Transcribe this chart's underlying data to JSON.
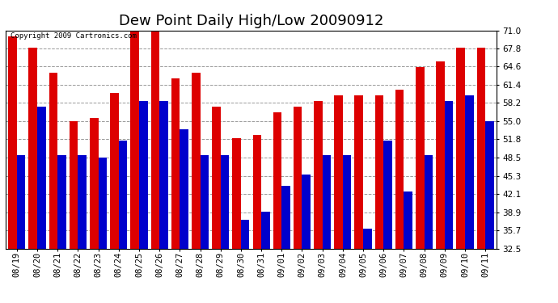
{
  "title": "Dew Point Daily High/Low 20090912",
  "copyright": "Copyright 2009 Cartronics.com",
  "dates": [
    "08/19",
    "08/20",
    "08/21",
    "08/22",
    "08/23",
    "08/24",
    "08/25",
    "08/26",
    "08/27",
    "08/28",
    "08/29",
    "08/30",
    "08/31",
    "09/01",
    "09/02",
    "09/03",
    "09/04",
    "09/05",
    "09/06",
    "09/07",
    "09/08",
    "09/09",
    "09/10",
    "09/11"
  ],
  "highs": [
    70.0,
    68.0,
    63.5,
    55.0,
    55.5,
    60.0,
    71.5,
    72.0,
    62.5,
    63.5,
    57.5,
    52.0,
    52.5,
    56.5,
    57.5,
    58.5,
    59.5,
    59.5,
    59.5,
    60.5,
    64.5,
    65.5,
    68.0,
    68.0
  ],
  "lows": [
    49.0,
    57.5,
    49.0,
    49.0,
    48.5,
    51.5,
    58.5,
    58.5,
    53.5,
    49.0,
    49.0,
    37.5,
    39.0,
    43.5,
    45.5,
    49.0,
    49.0,
    36.0,
    51.5,
    42.5,
    49.0,
    58.5,
    59.5,
    55.0
  ],
  "high_color": "#dd0000",
  "low_color": "#0000cc",
  "background_color": "#ffffff",
  "plot_bg_color": "#ffffff",
  "grid_color": "#999999",
  "ymin": 32.5,
  "ymax": 71.0,
  "yticks": [
    32.5,
    35.7,
    38.9,
    42.1,
    45.3,
    48.5,
    51.8,
    55.0,
    58.2,
    61.4,
    64.6,
    67.8,
    71.0
  ],
  "title_fontsize": 13,
  "tick_fontsize": 7.5,
  "bar_width": 0.42
}
